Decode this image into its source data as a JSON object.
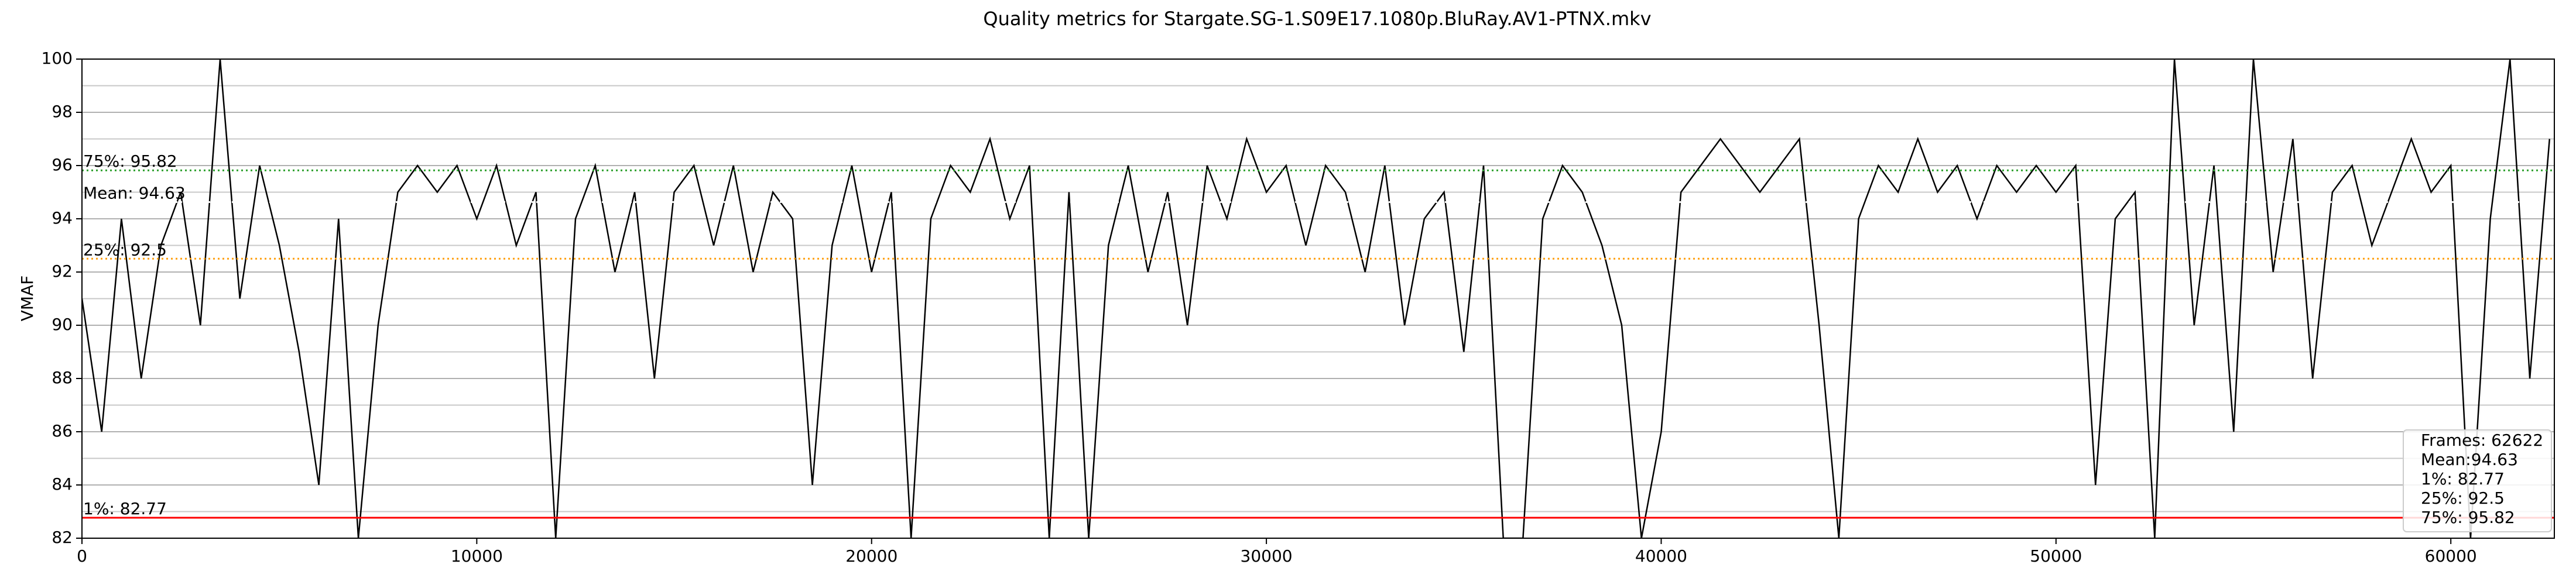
{
  "chart_data": {
    "type": "line",
    "title": "Quality metrics for Stargate.SG-1.S09E17.1080p.BluRay.AV1-PTNX.mkv",
    "y_label": "VMAF",
    "xlim": [
      0,
      62622
    ],
    "ylim": [
      82,
      100
    ],
    "xticks": [
      0,
      10000,
      20000,
      30000,
      40000,
      50000,
      60000
    ],
    "yticks": [
      82,
      84,
      86,
      88,
      90,
      92,
      94,
      96,
      98,
      100
    ],
    "minor_yticks": [
      83,
      85,
      87,
      89,
      91,
      93,
      95,
      97,
      99
    ],
    "grid": true,
    "x": [
      0,
      500,
      1000,
      1500,
      2000,
      2500,
      3000,
      3500,
      4000,
      4500,
      5000,
      5500,
      6000,
      6500,
      7000,
      7500,
      8000,
      8500,
      9000,
      9500,
      10000,
      10500,
      11000,
      11500,
      12000,
      12500,
      13000,
      13500,
      14000,
      14500,
      15000,
      15500,
      16000,
      16500,
      17000,
      17500,
      18000,
      18500,
      19000,
      19500,
      20000,
      20500,
      21000,
      21500,
      22000,
      22500,
      23000,
      23500,
      24000,
      24500,
      25000,
      25500,
      26000,
      26500,
      27000,
      27500,
      28000,
      28500,
      29000,
      29500,
      30000,
      30500,
      31000,
      31500,
      32000,
      32500,
      33000,
      33500,
      34000,
      34500,
      35000,
      35500,
      36000,
      36500,
      37000,
      37500,
      38000,
      38500,
      39000,
      39500,
      40000,
      40500,
      41000,
      41500,
      42000,
      42500,
      43000,
      43500,
      44000,
      44500,
      45000,
      45500,
      46000,
      46500,
      47000,
      47500,
      48000,
      48500,
      49000,
      49500,
      50000,
      50500,
      51000,
      51500,
      52000,
      52500,
      53000,
      53500,
      54000,
      54500,
      55000,
      55500,
      56000,
      56500,
      57000,
      57500,
      58000,
      58500,
      59000,
      59500,
      60000,
      60500,
      61000,
      61500,
      62000,
      62500
    ],
    "series": [
      {
        "color": "#000000",
        "values": [
          91,
          86,
          94,
          88,
          93,
          95,
          90,
          100,
          91,
          96,
          93,
          89,
          84,
          94,
          82,
          90,
          95,
          96,
          95,
          96,
          94,
          96,
          93,
          95,
          82,
          94,
          96,
          92,
          95,
          88,
          95,
          96,
          93,
          96,
          92,
          95,
          94,
          84,
          93,
          96,
          92,
          95,
          82,
          94,
          96,
          95,
          97,
          94,
          96,
          82,
          95,
          82,
          93,
          96,
          92,
          95,
          90,
          96,
          94,
          97,
          95,
          96,
          93,
          96,
          95,
          92,
          96,
          90,
          94,
          95,
          89,
          96,
          82,
          82,
          94,
          96,
          95,
          93,
          90,
          82,
          86,
          95,
          96,
          97,
          96,
          95,
          96,
          97,
          90,
          82,
          94,
          96,
          95,
          97,
          95,
          96,
          94,
          96,
          95,
          96,
          95,
          96,
          84,
          94,
          95,
          82,
          100,
          90,
          96,
          86,
          100,
          92,
          97,
          88,
          95,
          96,
          93,
          95,
          97,
          95,
          96,
          82,
          94,
          100,
          88,
          97
        ]
      }
    ],
    "hlines": [
      {
        "label": "75%: 95.82",
        "value": 95.82,
        "color": "#2ca02c",
        "dash": "3,5"
      },
      {
        "label": "Mean: 94.63",
        "value": 94.63,
        "color": "#ffffff",
        "dash": "3,5"
      },
      {
        "label": "25%: 92.5",
        "value": 92.5,
        "color": "#ff9f0e",
        "dash": "3,5"
      },
      {
        "label": "1%: 82.77",
        "value": 82.77,
        "color": "#ff0000",
        "dash": "none"
      }
    ],
    "stats_box": [
      "Frames: 62622",
      "Mean:94.63",
      "1%: 82.77",
      "25%: 92.5",
      "75%: 95.82"
    ]
  }
}
